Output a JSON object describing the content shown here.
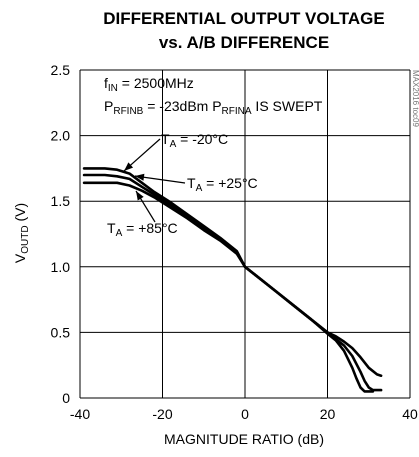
{
  "chart_data": {
    "type": "line",
    "title": [
      "DIFFERENTIAL OUTPUT VOLTAGE",
      "vs. A/B DIFFERENCE"
    ],
    "xlabel": "MAGNITUDE RATIO (dB)",
    "ylabel": {
      "main": "V",
      "sub": "OUTD",
      "rest": " (V)"
    },
    "xlim": [
      -40,
      40
    ],
    "ylim": [
      0,
      2.5
    ],
    "xticks": [
      -40,
      -20,
      0,
      20,
      40
    ],
    "yticks": [
      0,
      0.5,
      1.0,
      1.5,
      2.0,
      2.5
    ],
    "xtick_labels": [
      "-40",
      "-20",
      "0",
      "20",
      "40"
    ],
    "ytick_labels": [
      "0",
      "0.5",
      "1.0",
      "1.5",
      "2.0",
      "2.5"
    ],
    "grid": true,
    "watermark": "MAX2016 toc09",
    "annotations": {
      "line1": {
        "main": "f",
        "sub": "IN",
        "rest": " = 2500MHz"
      },
      "line2": {
        "main": "P",
        "sub": "RFINB",
        "mid": " = -23dBm P",
        "sub2": "RFINA",
        "rest": " IS SWEPT"
      }
    },
    "series": [
      {
        "name": {
          "main": "T",
          "sub": "A",
          "rest": " = -20°C"
        },
        "x": [
          -39,
          -34,
          -31,
          -28,
          -25,
          -22,
          -18,
          -14,
          -10,
          -6,
          -2,
          0,
          4,
          8,
          12,
          16,
          20,
          22,
          24,
          26,
          28,
          30,
          32,
          33
        ],
        "y": [
          1.75,
          1.75,
          1.74,
          1.71,
          1.64,
          1.57,
          1.49,
          1.4,
          1.31,
          1.22,
          1.12,
          1.0,
          0.9,
          0.8,
          0.7,
          0.6,
          0.5,
          0.47,
          0.43,
          0.38,
          0.31,
          0.23,
          0.18,
          0.17
        ]
      },
      {
        "name": {
          "main": "T",
          "sub": "A",
          "rest": " = +25°C"
        },
        "x": [
          -39,
          -34,
          -31,
          -28,
          -25,
          -22,
          -18,
          -14,
          -10,
          -6,
          -2,
          0,
          4,
          8,
          12,
          16,
          20,
          22,
          24,
          26,
          28,
          29,
          30,
          31,
          32,
          33
        ],
        "y": [
          1.7,
          1.7,
          1.69,
          1.67,
          1.61,
          1.55,
          1.47,
          1.39,
          1.3,
          1.21,
          1.11,
          1.0,
          0.9,
          0.8,
          0.7,
          0.6,
          0.5,
          0.45,
          0.4,
          0.32,
          0.2,
          0.13,
          0.08,
          0.06,
          0.06,
          0.06
        ]
      },
      {
        "name": {
          "main": "T",
          "sub": "A",
          "rest": " = +85°C"
        },
        "x": [
          -39,
          -34,
          -31,
          -28,
          -25,
          -22,
          -18,
          -14,
          -10,
          -6,
          -2,
          0,
          4,
          8,
          12,
          16,
          20,
          22,
          24,
          26,
          27,
          28,
          29,
          30,
          31
        ],
        "y": [
          1.64,
          1.64,
          1.64,
          1.62,
          1.58,
          1.53,
          1.45,
          1.37,
          1.28,
          1.2,
          1.1,
          1.0,
          0.9,
          0.8,
          0.7,
          0.6,
          0.49,
          0.44,
          0.36,
          0.23,
          0.15,
          0.08,
          0.05,
          0.05,
          0.05
        ]
      }
    ]
  }
}
